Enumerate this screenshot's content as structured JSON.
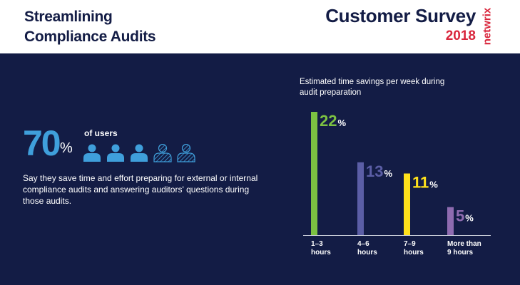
{
  "header": {
    "title_line1": "Streamlining",
    "title_line2": "Compliance Audits",
    "survey_line1": "Customer Survey",
    "survey_year": "2018",
    "logo_text": "netwrix"
  },
  "stat": {
    "value": "70",
    "unit": "%",
    "label": "of users",
    "icons_filled": 3,
    "icons_total": 5,
    "description": "Say they save time and effort preparing for external or internal compliance audits and answering auditors' questions during those audits."
  },
  "colors": {
    "background": "#131c45",
    "header_bg": "#ffffff",
    "accent_blue": "#3f9fdb",
    "brand_red": "#d9263c",
    "bar_1_3": "#7cc142",
    "bar_4_6": "#5b5ea6",
    "bar_7_9": "#ffe11b",
    "bar_9plus": "#8e6bb0"
  },
  "chart_data": {
    "type": "bar",
    "title": "Estimated time savings per week during audit preparation",
    "categories": [
      "1–3 hours",
      "4–6 hours",
      "7–9 hours",
      "More than 9 hours"
    ],
    "category_lines": [
      [
        "1–3",
        "hours"
      ],
      [
        "4–6",
        "hours"
      ],
      [
        "7–9",
        "hours"
      ],
      [
        "More than",
        "9 hours"
      ]
    ],
    "values": [
      22,
      13,
      11,
      5
    ],
    "unit": "%",
    "ylim": [
      0,
      22
    ],
    "grid": false,
    "legend": "none"
  }
}
